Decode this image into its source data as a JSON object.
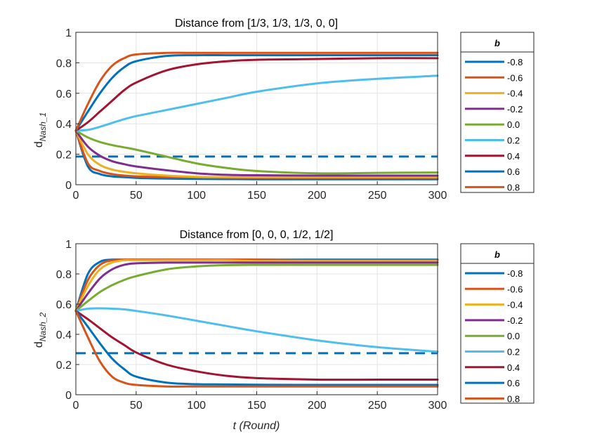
{
  "xlabel": "t (Round)",
  "chart_data": [
    {
      "type": "line",
      "title": "Distance  from [1/3, 1/3, 1/3, 0, 0]",
      "ylabel": "d",
      "ylabel_sub": "Nash_1",
      "xlim": [
        0,
        300
      ],
      "ylim": [
        0,
        1
      ],
      "xticks": [
        "0",
        "50",
        "100",
        "150",
        "200",
        "250",
        "300"
      ],
      "yticks": [
        "0",
        "0.2",
        "0.4",
        "0.6",
        "0.8",
        "1"
      ],
      "grid": true,
      "reference_line": {
        "y": 0.185,
        "style": "dashed",
        "color": "#0072bd"
      },
      "legend": {
        "title": "b",
        "placement": "right"
      },
      "x": [
        0,
        10,
        20,
        30,
        40,
        50,
        75,
        100,
        125,
        150,
        200,
        250,
        300
      ],
      "series": [
        {
          "name": "-0.8",
          "color": "#0072bd",
          "values": [
            0.355,
            0.12,
            0.07,
            0.055,
            0.05,
            0.045,
            0.04,
            0.038,
            0.037,
            0.036,
            0.036,
            0.036,
            0.036
          ]
        },
        {
          "name": "-0.6",
          "color": "#d95319",
          "values": [
            0.355,
            0.14,
            0.09,
            0.07,
            0.06,
            0.055,
            0.05,
            0.048,
            0.046,
            0.045,
            0.045,
            0.045,
            0.045
          ]
        },
        {
          "name": "-0.4",
          "color": "#edb120",
          "values": [
            0.355,
            0.2,
            0.13,
            0.1,
            0.085,
            0.075,
            0.06,
            0.052,
            0.05,
            0.05,
            0.05,
            0.05,
            0.05
          ]
        },
        {
          "name": "-0.2",
          "color": "#7e2f8e",
          "values": [
            0.355,
            0.25,
            0.19,
            0.155,
            0.135,
            0.12,
            0.095,
            0.075,
            0.065,
            0.062,
            0.06,
            0.06,
            0.06
          ]
        },
        {
          "name": "0.0",
          "color": "#77ac30",
          "values": [
            0.355,
            0.31,
            0.28,
            0.26,
            0.245,
            0.23,
            0.185,
            0.14,
            0.11,
            0.09,
            0.075,
            0.078,
            0.08
          ]
        },
        {
          "name": "0.2",
          "color": "#4dbeee",
          "values": [
            0.355,
            0.36,
            0.38,
            0.405,
            0.43,
            0.45,
            0.49,
            0.53,
            0.57,
            0.61,
            0.665,
            0.695,
            0.715
          ]
        },
        {
          "name": "0.4",
          "color": "#a2142f",
          "values": [
            0.355,
            0.41,
            0.48,
            0.55,
            0.62,
            0.67,
            0.75,
            0.79,
            0.81,
            0.82,
            0.825,
            0.83,
            0.83
          ]
        },
        {
          "name": "0.6",
          "color": "#0072bd",
          "values": [
            0.355,
            0.48,
            0.6,
            0.7,
            0.77,
            0.81,
            0.845,
            0.85,
            0.85,
            0.85,
            0.85,
            0.85,
            0.85
          ]
        },
        {
          "name": "0.8",
          "color": "#d95319",
          "values": [
            0.355,
            0.53,
            0.68,
            0.78,
            0.83,
            0.855,
            0.865,
            0.865,
            0.865,
            0.865,
            0.865,
            0.865,
            0.865
          ]
        }
      ]
    },
    {
      "type": "line",
      "title": "Distance from [0, 0, 0, 1/2, 1/2]",
      "ylabel": "d",
      "ylabel_sub": "Nash_2",
      "xlim": [
        0,
        300
      ],
      "ylim": [
        0,
        1
      ],
      "xticks": [
        "0",
        "50",
        "100",
        "150",
        "200",
        "250",
        "300"
      ],
      "yticks": [
        "0",
        "0.2",
        "0.4",
        "0.6",
        "0.8",
        "1"
      ],
      "grid": true,
      "reference_line": {
        "y": 0.275,
        "style": "dashed",
        "color": "#0072bd"
      },
      "legend": {
        "title": "b",
        "placement": "right"
      },
      "x": [
        0,
        10,
        20,
        30,
        40,
        50,
        75,
        100,
        125,
        150,
        200,
        250,
        300
      ],
      "series": [
        {
          "name": "-0.8",
          "color": "#0072bd",
          "values": [
            0.555,
            0.8,
            0.88,
            0.895,
            0.895,
            0.895,
            0.895,
            0.895,
            0.895,
            0.895,
            0.895,
            0.895,
            0.895
          ]
        },
        {
          "name": "-0.6",
          "color": "#d95319",
          "values": [
            0.555,
            0.76,
            0.86,
            0.89,
            0.895,
            0.895,
            0.895,
            0.895,
            0.895,
            0.895,
            0.89,
            0.89,
            0.89
          ]
        },
        {
          "name": "-0.4",
          "color": "#edb120",
          "values": [
            0.555,
            0.72,
            0.83,
            0.875,
            0.89,
            0.89,
            0.89,
            0.89,
            0.89,
            0.885,
            0.885,
            0.885,
            0.885
          ]
        },
        {
          "name": "-0.2",
          "color": "#7e2f8e",
          "values": [
            0.555,
            0.67,
            0.77,
            0.83,
            0.86,
            0.87,
            0.875,
            0.875,
            0.875,
            0.875,
            0.875,
            0.875,
            0.875
          ]
        },
        {
          "name": "0.0",
          "color": "#77ac30",
          "values": [
            0.555,
            0.62,
            0.68,
            0.725,
            0.76,
            0.785,
            0.83,
            0.85,
            0.858,
            0.86,
            0.86,
            0.86,
            0.86
          ]
        },
        {
          "name": "0.2",
          "color": "#4dbeee",
          "values": [
            0.555,
            0.57,
            0.572,
            0.57,
            0.565,
            0.555,
            0.525,
            0.49,
            0.455,
            0.42,
            0.36,
            0.315,
            0.285
          ]
        },
        {
          "name": "0.4",
          "color": "#a2142f",
          "values": [
            0.555,
            0.5,
            0.44,
            0.38,
            0.33,
            0.28,
            0.2,
            0.155,
            0.125,
            0.11,
            0.1,
            0.1,
            0.1
          ]
        },
        {
          "name": "0.6",
          "color": "#0072bd",
          "values": [
            0.555,
            0.45,
            0.34,
            0.24,
            0.17,
            0.12,
            0.08,
            0.07,
            0.068,
            0.066,
            0.065,
            0.065,
            0.065
          ]
        },
        {
          "name": "0.8",
          "color": "#d95319",
          "values": [
            0.555,
            0.38,
            0.22,
            0.12,
            0.08,
            0.065,
            0.055,
            0.055,
            0.055,
            0.055,
            0.055,
            0.055,
            0.055
          ]
        }
      ]
    }
  ]
}
